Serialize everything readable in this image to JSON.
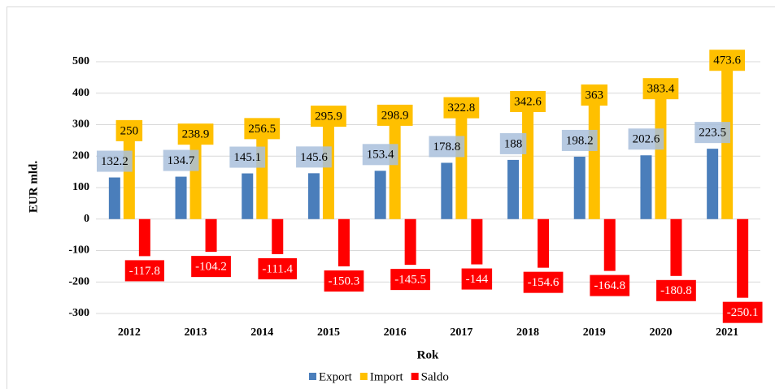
{
  "chart_data": {
    "type": "bar",
    "x_label": "Rok",
    "y_label": "EUR mld.",
    "categories": [
      "2012",
      "2013",
      "2014",
      "2015",
      "2016",
      "2017",
      "2018",
      "2019",
      "2020",
      "2021"
    ],
    "series": [
      {
        "name": "Export",
        "color": "#4a7ebb",
        "label_color": "#a9bfdc",
        "values": [
          132.2,
          134.7,
          145.1,
          145.6,
          153.4,
          178.8,
          188,
          198.2,
          202.6,
          223.5
        ]
      },
      {
        "name": "Import",
        "color": "#ffc000",
        "label_color": "#ffc000",
        "values": [
          250,
          238.9,
          256.5,
          295.9,
          298.9,
          322.8,
          342.6,
          363,
          383.4,
          473.6
        ]
      },
      {
        "name": "Saldo",
        "color": "#ff0000",
        "label_color": "#ff0000",
        "values": [
          -117.8,
          -104.2,
          -111.4,
          -150.3,
          -145.5,
          -144,
          -154.6,
          -164.8,
          -180.8,
          -250.1
        ]
      }
    ],
    "ylim": [
      -300,
      500
    ],
    "yticks": [
      -300,
      -200,
      -100,
      0,
      100,
      200,
      300,
      400,
      500
    ],
    "grid": true
  }
}
